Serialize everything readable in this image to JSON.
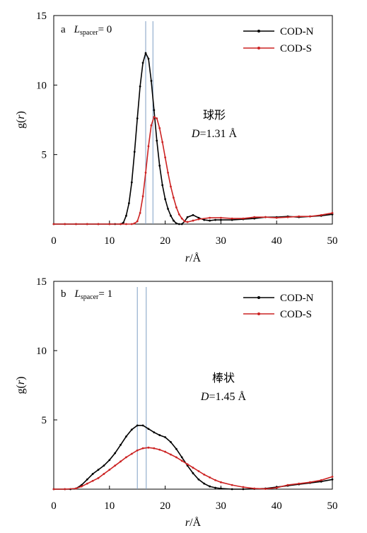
{
  "chart_data": [
    {
      "type": "line",
      "panel_label": "a",
      "annotation_left": "L",
      "annotation_sub": "spacer",
      "annotation_right": "= 0",
      "xlabel_italic": "r",
      "xlabel_unit": "/Å",
      "ylabel_prefix": "g(",
      "ylabel_italic": "r",
      "ylabel_suffix": ")",
      "xlim": [
        0,
        50
      ],
      "ylim": [
        0,
        15
      ],
      "xticks": [
        "0",
        "10",
        "20",
        "30",
        "40",
        "50"
      ],
      "yticks": [
        "5",
        "10",
        "15"
      ],
      "vlines": [
        16.5,
        17.8
      ],
      "shape_label": "球形",
      "d_italic": "D",
      "d_value": "=1.31 Å",
      "legend_position": "top-right",
      "series": [
        {
          "name": "COD-N",
          "color": "#000000",
          "x": [
            0,
            2,
            4,
            6,
            8,
            10,
            11,
            12,
            12.5,
            13,
            13.5,
            14,
            14.5,
            15,
            15.5,
            16,
            16.5,
            17,
            17.5,
            18,
            18.5,
            19,
            19.5,
            20,
            20.5,
            21,
            21.5,
            22,
            22.5,
            23,
            23.5,
            24,
            25,
            26,
            27,
            28,
            29,
            30,
            32,
            34,
            36,
            38,
            40,
            42,
            44,
            46,
            48,
            50
          ],
          "y": [
            0,
            0,
            0,
            0,
            0,
            0,
            0,
            0,
            0.1,
            0.6,
            1.5,
            3.0,
            5.2,
            7.6,
            9.9,
            11.6,
            12.3,
            11.9,
            10.3,
            8.2,
            6.0,
            4.2,
            2.8,
            1.8,
            1.1,
            0.6,
            0.25,
            0.05,
            0,
            0,
            0.2,
            0.5,
            0.65,
            0.45,
            0.3,
            0.25,
            0.3,
            0.3,
            0.3,
            0.35,
            0.4,
            0.5,
            0.5,
            0.55,
            0.5,
            0.55,
            0.6,
            0.7
          ]
        },
        {
          "name": "COD-S",
          "color": "#cc2222",
          "x": [
            0,
            2,
            4,
            6,
            8,
            10,
            12,
            13,
            14,
            14.5,
            15,
            15.5,
            16,
            16.5,
            17,
            17.5,
            18,
            18.5,
            19,
            19.5,
            20,
            20.5,
            21,
            21.5,
            22,
            22.5,
            23,
            23.5,
            24,
            25,
            26,
            28,
            30,
            32,
            34,
            36,
            38,
            40,
            42,
            44,
            46,
            48,
            50
          ],
          "y": [
            0,
            0,
            0,
            0,
            0,
            0,
            0,
            0,
            0,
            0.05,
            0.2,
            0.8,
            2.0,
            3.7,
            5.6,
            7.1,
            7.7,
            7.6,
            6.9,
            5.9,
            4.8,
            3.7,
            2.7,
            1.9,
            1.2,
            0.7,
            0.4,
            0.2,
            0.15,
            0.25,
            0.35,
            0.45,
            0.45,
            0.4,
            0.4,
            0.5,
            0.5,
            0.45,
            0.5,
            0.55,
            0.55,
            0.65,
            0.8
          ]
        }
      ]
    },
    {
      "type": "line",
      "panel_label": "b",
      "annotation_left": "L",
      "annotation_sub": "spacer",
      "annotation_right": "= 1",
      "xlabel_italic": "r",
      "xlabel_unit": "/Å",
      "ylabel_prefix": "g(",
      "ylabel_italic": "r",
      "ylabel_suffix": ")",
      "xlim": [
        0,
        50
      ],
      "ylim": [
        0,
        15
      ],
      "xticks": [
        "0",
        "10",
        "20",
        "30",
        "40",
        "50"
      ],
      "yticks": [
        "5",
        "10",
        "15"
      ],
      "vlines": [
        15.0,
        16.6
      ],
      "shape_label": "棒状",
      "d_italic": "D",
      "d_value": "=1.45 Å",
      "legend_position": "top-right",
      "series": [
        {
          "name": "COD-N",
          "color": "#000000",
          "x": [
            0,
            2,
            3,
            4,
            5,
            6,
            7,
            8,
            9,
            10,
            11,
            12,
            13,
            14,
            15,
            16,
            17,
            18,
            19,
            20,
            21,
            22,
            23,
            24,
            25,
            26,
            27,
            28,
            29,
            30,
            32,
            34,
            36,
            38,
            40,
            42,
            44,
            46,
            48,
            50
          ],
          "y": [
            0,
            0,
            0,
            0.05,
            0.3,
            0.7,
            1.1,
            1.4,
            1.7,
            2.1,
            2.6,
            3.2,
            3.8,
            4.3,
            4.6,
            4.6,
            4.35,
            4.1,
            3.9,
            3.75,
            3.4,
            2.9,
            2.3,
            1.7,
            1.15,
            0.7,
            0.4,
            0.2,
            0.1,
            0.05,
            0,
            0,
            0.02,
            0.05,
            0.15,
            0.25,
            0.35,
            0.45,
            0.55,
            0.7
          ]
        },
        {
          "name": "COD-S",
          "color": "#cc2222",
          "x": [
            0,
            2,
            4,
            5,
            6,
            7,
            8,
            9,
            10,
            11,
            12,
            13,
            14,
            15,
            16,
            17,
            18,
            19,
            20,
            21,
            22,
            23,
            24,
            25,
            26,
            27,
            28,
            29,
            30,
            32,
            34,
            36,
            38,
            40,
            42,
            44,
            46,
            48,
            50
          ],
          "y": [
            0,
            0,
            0.05,
            0.2,
            0.4,
            0.6,
            0.8,
            1.1,
            1.4,
            1.7,
            2.0,
            2.3,
            2.55,
            2.8,
            2.95,
            3.0,
            2.95,
            2.85,
            2.7,
            2.5,
            2.3,
            2.05,
            1.8,
            1.55,
            1.3,
            1.05,
            0.85,
            0.65,
            0.5,
            0.3,
            0.15,
            0.05,
            0.02,
            0.1,
            0.3,
            0.4,
            0.5,
            0.65,
            0.9
          ]
        }
      ]
    }
  ]
}
